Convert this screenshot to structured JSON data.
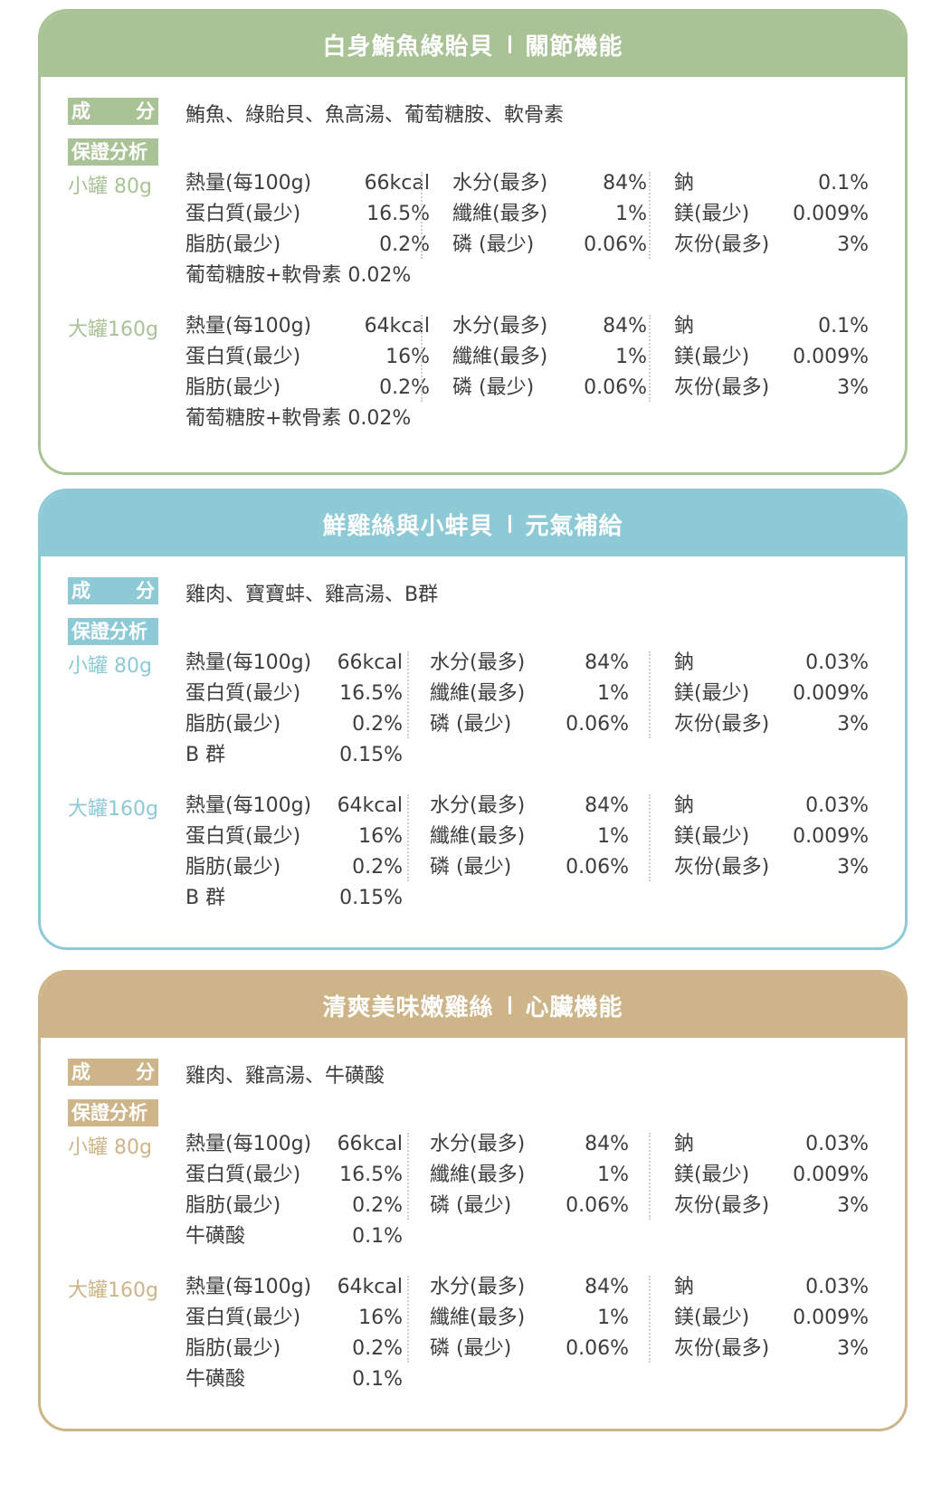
{
  "colors": {
    "green": "#a9c296",
    "blue": "#8ec9d6",
    "tan": "#cdb489"
  },
  "labels": {
    "ingredients_a": "成",
    "ingredients_b": "分",
    "analysis": "保證分析"
  },
  "cards": [
    {
      "title": "白身鮪魚綠貽貝",
      "function": "關節機能",
      "ingredients": "鮪魚、綠貽貝、魚高湯、葡萄糖胺、軟骨素",
      "sizes": [
        {
          "label": "小罐 80g",
          "col1": [
            {
              "k": "熱量(每100g)",
              "v": "66kcal"
            },
            {
              "k": "蛋白質(最少)",
              "v": "16.5%"
            },
            {
              "k": "脂肪(最少)",
              "v": "0.2%"
            }
          ],
          "extra": "葡萄糖胺+軟骨素 0.02%",
          "col2": [
            {
              "k": "水分(最多)",
              "v": "84%"
            },
            {
              "k": "纖維(最多)",
              "v": "1%"
            },
            {
              "k": "磷 (最少)",
              "v": "0.06%"
            }
          ],
          "col3": [
            {
              "k": "鈉",
              "v": "0.1%"
            },
            {
              "k": "鎂(最少)",
              "v": "0.009%"
            },
            {
              "k": "灰份(最多)",
              "v": "3%"
            }
          ]
        },
        {
          "label": "大罐160g",
          "col1": [
            {
              "k": "熱量(每100g)",
              "v": "64kcal"
            },
            {
              "k": "蛋白質(最少)",
              "v": "16%"
            },
            {
              "k": "脂肪(最少)",
              "v": "0.2%"
            }
          ],
          "extra": "葡萄糖胺+軟骨素 0.02%",
          "col2": [
            {
              "k": "水分(最多)",
              "v": "84%"
            },
            {
              "k": "纖維(最多)",
              "v": "1%"
            },
            {
              "k": "磷 (最少)",
              "v": "0.06%"
            }
          ],
          "col3": [
            {
              "k": "鈉",
              "v": "0.1%"
            },
            {
              "k": "鎂(最少)",
              "v": "0.009%"
            },
            {
              "k": "灰份(最多)",
              "v": "3%"
            }
          ]
        }
      ]
    },
    {
      "title": "鮮雞絲與小蚌貝",
      "function": "元氣補給",
      "ingredients": "雞肉、寶寶蚌、雞高湯、B群",
      "sizes": [
        {
          "label": "小罐 80g",
          "col1": [
            {
              "k": "熱量(每100g)",
              "v": "66kcal"
            },
            {
              "k": "蛋白質(最少)",
              "v": "16.5%"
            },
            {
              "k": "脂肪(最少)",
              "v": "0.2%"
            },
            {
              "k": "B 群",
              "v": "0.15%"
            }
          ],
          "col2": [
            {
              "k": "水分(最多)",
              "v": "84%"
            },
            {
              "k": "纖維(最多)",
              "v": "1%"
            },
            {
              "k": "磷 (最少)",
              "v": "0.06%"
            }
          ],
          "col3": [
            {
              "k": "鈉",
              "v": "0.03%"
            },
            {
              "k": "鎂(最少)",
              "v": "0.009%"
            },
            {
              "k": "灰份(最多)",
              "v": "3%"
            }
          ]
        },
        {
          "label": "大罐160g",
          "col1": [
            {
              "k": "熱量(每100g)",
              "v": "64kcal"
            },
            {
              "k": "蛋白質(最少)",
              "v": "16%"
            },
            {
              "k": "脂肪(最少)",
              "v": "0.2%"
            },
            {
              "k": "B 群",
              "v": "0.15%"
            }
          ],
          "col2": [
            {
              "k": "水分(最多)",
              "v": "84%"
            },
            {
              "k": "纖維(最多)",
              "v": "1%"
            },
            {
              "k": "磷 (最少)",
              "v": "0.06%"
            }
          ],
          "col3": [
            {
              "k": "鈉",
              "v": "0.03%"
            },
            {
              "k": "鎂(最少)",
              "v": "0.009%"
            },
            {
              "k": "灰份(最多)",
              "v": "3%"
            }
          ]
        }
      ]
    },
    {
      "title": "清爽美味嫩雞絲",
      "function": "心臟機能",
      "ingredients": "雞肉、雞高湯、牛磺酸",
      "sizes": [
        {
          "label": "小罐 80g",
          "col1": [
            {
              "k": "熱量(每100g)",
              "v": "66kcal"
            },
            {
              "k": "蛋白質(最少)",
              "v": "16.5%"
            },
            {
              "k": "脂肪(最少)",
              "v": "0.2%"
            },
            {
              "k": "牛磺酸",
              "v": "0.1%"
            }
          ],
          "col2": [
            {
              "k": "水分(最多)",
              "v": "84%"
            },
            {
              "k": "纖維(最多)",
              "v": "1%"
            },
            {
              "k": "磷 (最少)",
              "v": "0.06%"
            }
          ],
          "col3": [
            {
              "k": "鈉",
              "v": "0.03%"
            },
            {
              "k": "鎂(最少)",
              "v": "0.009%"
            },
            {
              "k": "灰份(最多)",
              "v": "3%"
            }
          ]
        },
        {
          "label": "大罐160g",
          "col1": [
            {
              "k": "熱量(每100g)",
              "v": "64kcal"
            },
            {
              "k": "蛋白質(最少)",
              "v": "16%"
            },
            {
              "k": "脂肪(最少)",
              "v": "0.2%"
            },
            {
              "k": "牛磺酸",
              "v": "0.1%"
            }
          ],
          "col2": [
            {
              "k": "水分(最多)",
              "v": "84%"
            },
            {
              "k": "纖維(最多)",
              "v": "1%"
            },
            {
              "k": "磷 (最少)",
              "v": "0.06%"
            }
          ],
          "col3": [
            {
              "k": "鈉",
              "v": "0.03%"
            },
            {
              "k": "鎂(最少)",
              "v": "0.009%"
            },
            {
              "k": "灰份(最多)",
              "v": "3%"
            }
          ]
        }
      ]
    }
  ]
}
